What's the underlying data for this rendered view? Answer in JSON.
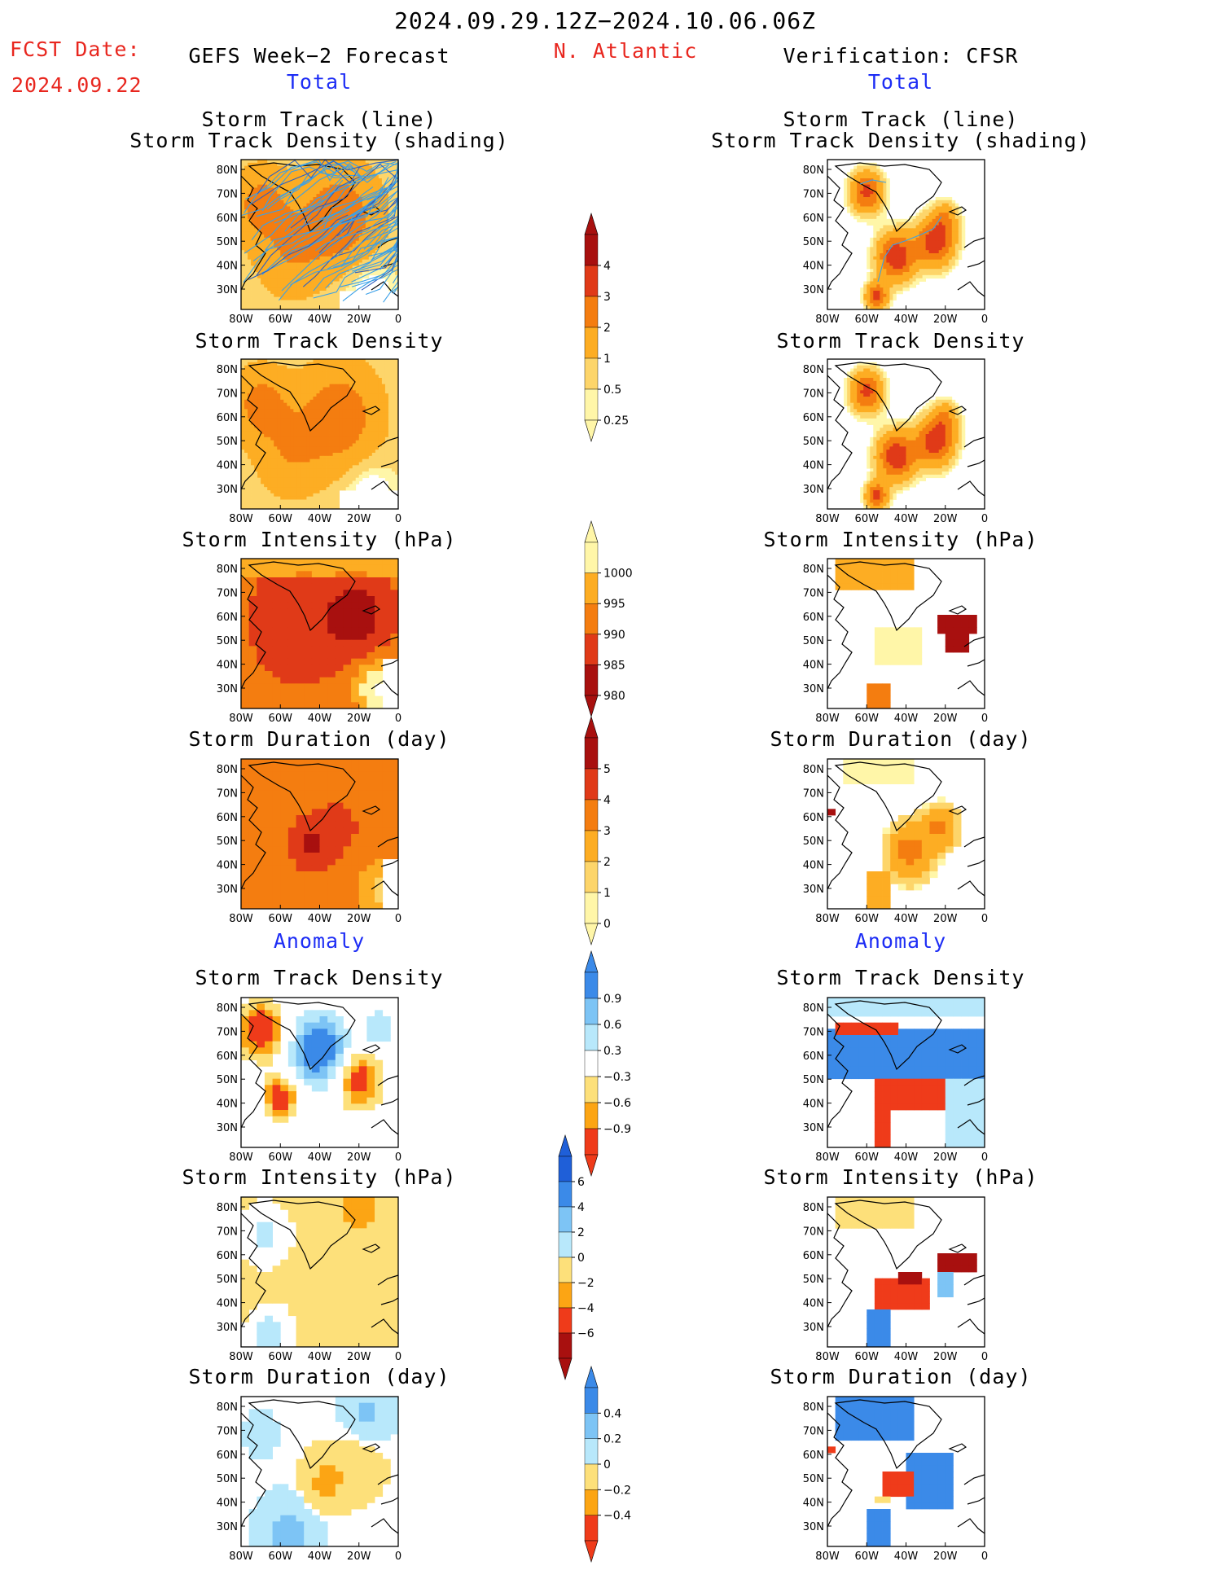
{
  "header": {
    "date_range": "2024.09.29.12Z−2024.10.06.06Z",
    "fcst_label": "FCST Date:",
    "fcst_date": "2024.09.22",
    "left_title": "GEFS Week−2 Forecast",
    "region": "N. Atlantic",
    "right_title": "Verification: CFSR",
    "total_label": "Total",
    "anomaly_label": "Anomaly"
  },
  "colors": {
    "title_red": "#e8261e",
    "title_blue": "#1d2df5",
    "track_line": "#3aa0e8",
    "track_line_dark": "#3060c0"
  },
  "chart_data": [
    {
      "id": "track_line",
      "type": "heatmap",
      "title_lines": [
        "Storm Track (line)",
        "Storm Track Density (shading)"
      ],
      "xticks": [
        "80W",
        "60W",
        "40W",
        "20W",
        "0"
      ],
      "yticks": [
        "80N",
        "70N",
        "60N",
        "50N",
        "40N",
        "30N"
      ],
      "xlim": [
        -80,
        0
      ],
      "ylim": [
        25,
        85
      ]
    },
    {
      "id": "density",
      "type": "heatmap",
      "title_lines": [
        "Storm Track Density"
      ],
      "xticks": [
        "80W",
        "60W",
        "40W",
        "20W",
        "0"
      ],
      "yticks": [
        "80N",
        "70N",
        "60N",
        "50N",
        "40N",
        "30N"
      ],
      "colorbar": {
        "ticks": [
          "0.25",
          "0.5",
          "1",
          "2",
          "3",
          "4"
        ],
        "colors": [
          "#fff6a8",
          "#fdd56a",
          "#fdad23",
          "#f47d10",
          "#e03a18",
          "#a8100f"
        ]
      }
    },
    {
      "id": "intensity",
      "type": "heatmap",
      "title_lines": [
        "Storm Intensity (hPa)"
      ],
      "xticks": [
        "80W",
        "60W",
        "40W",
        "20W",
        "0"
      ],
      "yticks": [
        "80N",
        "70N",
        "60N",
        "50N",
        "40N",
        "30N"
      ],
      "colorbar": {
        "ticks": [
          "1000",
          "995",
          "990",
          "985",
          "980"
        ],
        "colors": [
          "#fff6a8",
          "#fdad23",
          "#f47d10",
          "#e03a18",
          "#a8100f"
        ]
      }
    },
    {
      "id": "duration",
      "type": "heatmap",
      "title_lines": [
        "Storm Duration (day)"
      ],
      "xticks": [
        "80W",
        "60W",
        "40W",
        "20W",
        "0"
      ],
      "yticks": [
        "80N",
        "70N",
        "60N",
        "50N",
        "40N",
        "30N"
      ],
      "colorbar": {
        "ticks": [
          "0",
          "1",
          "2",
          "3",
          "4",
          "5"
        ],
        "colors": [
          "#fff6a8",
          "#fdd56a",
          "#fdad23",
          "#f47d10",
          "#e03a18",
          "#a8100f"
        ]
      }
    },
    {
      "id": "anom_density",
      "type": "heatmap",
      "title_lines": [
        "Storm Track Density"
      ],
      "xticks": [
        "80W",
        "60W",
        "40W",
        "20W",
        "0"
      ],
      "yticks": [
        "80N",
        "70N",
        "60N",
        "50N",
        "40N",
        "30N"
      ],
      "colorbar": {
        "ticks": [
          "0.9",
          "0.6",
          "0.3",
          "−0.3",
          "−0.6",
          "−0.9"
        ],
        "colors": [
          "#ef3b1a",
          "#fca514",
          "#fde07a",
          "#ffffff",
          "#b8e8fb",
          "#7dc4f5",
          "#3b8ae8"
        ]
      }
    },
    {
      "id": "anom_intensity",
      "type": "heatmap",
      "title_lines": [
        "Storm Intensity (hPa)"
      ],
      "xticks": [
        "80W",
        "60W",
        "40W",
        "20W",
        "0"
      ],
      "yticks": [
        "80N",
        "70N",
        "60N",
        "50N",
        "40N",
        "30N"
      ],
      "colorbar": {
        "ticks": [
          "6",
          "4",
          "2",
          "0",
          "−2",
          "−4",
          "−6"
        ],
        "colors": [
          "#a8100f",
          "#ef3b1a",
          "#fca514",
          "#fde07a",
          "#b8e8fb",
          "#7dc4f5",
          "#3b8ae8",
          "#1f5fd8"
        ]
      }
    },
    {
      "id": "anom_duration",
      "type": "heatmap",
      "title_lines": [
        "Storm Duration (day)"
      ],
      "xticks": [
        "80W",
        "60W",
        "40W",
        "20W",
        "0"
      ],
      "yticks": [
        "80N",
        "70N",
        "60N",
        "50N",
        "40N",
        "30N"
      ],
      "colorbar": {
        "ticks": [
          "0.4",
          "0.2",
          "0",
          "−0.2",
          "−0.4"
        ],
        "colors": [
          "#ef3b1a",
          "#fca514",
          "#fde07a",
          "#b8e8fb",
          "#7dc4f5",
          "#3b8ae8"
        ]
      }
    }
  ]
}
